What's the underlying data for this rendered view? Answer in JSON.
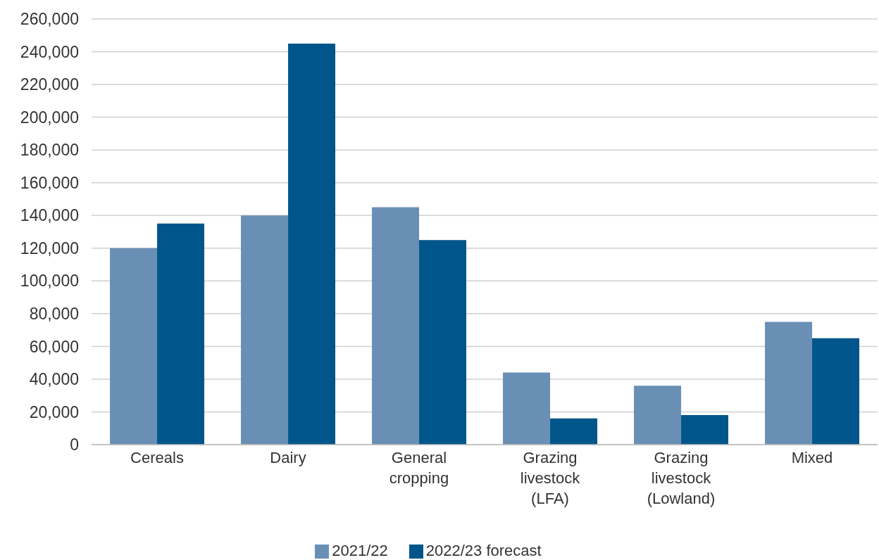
{
  "chart_data": {
    "type": "bar",
    "categories": [
      "Cereals",
      "Dairy",
      "General cropping",
      "Grazing livestock (LFA)",
      "Grazing livestock (Lowland)",
      "Mixed"
    ],
    "series": [
      {
        "name": "2021/22",
        "color": "#6a8fb5",
        "values": [
          120000,
          140000,
          145000,
          44000,
          36000,
          75000
        ]
      },
      {
        "name": "2022/23 forecast",
        "color": "#00568a",
        "values": [
          135000,
          245000,
          125000,
          16000,
          18000,
          65000
        ]
      }
    ],
    "ylim": [
      0,
      260000
    ],
    "yticks": [
      0,
      {
        "value": 20000,
        "label": "20,000"
      },
      {
        "value": 40000,
        "label": "40,000"
      },
      {
        "value": 60000,
        "label": "60,000"
      },
      {
        "value": 80000,
        "label": "80,000"
      },
      {
        "value": 100000,
        "label": "100,000"
      },
      {
        "value": 120000,
        "label": "120,000"
      },
      {
        "value": 140000,
        "label": "140,000"
      },
      {
        "value": 160000,
        "label": "160,000"
      },
      {
        "value": 180000,
        "label": "180,000"
      },
      {
        "value": 200000,
        "label": "200,000"
      },
      {
        "value": 220000,
        "label": "220,000"
      },
      {
        "value": 240000,
        "label": "240,000"
      },
      {
        "value": 260000,
        "label": "260,000"
      }
    ],
    "grid": "y",
    "legend": "bottom"
  }
}
